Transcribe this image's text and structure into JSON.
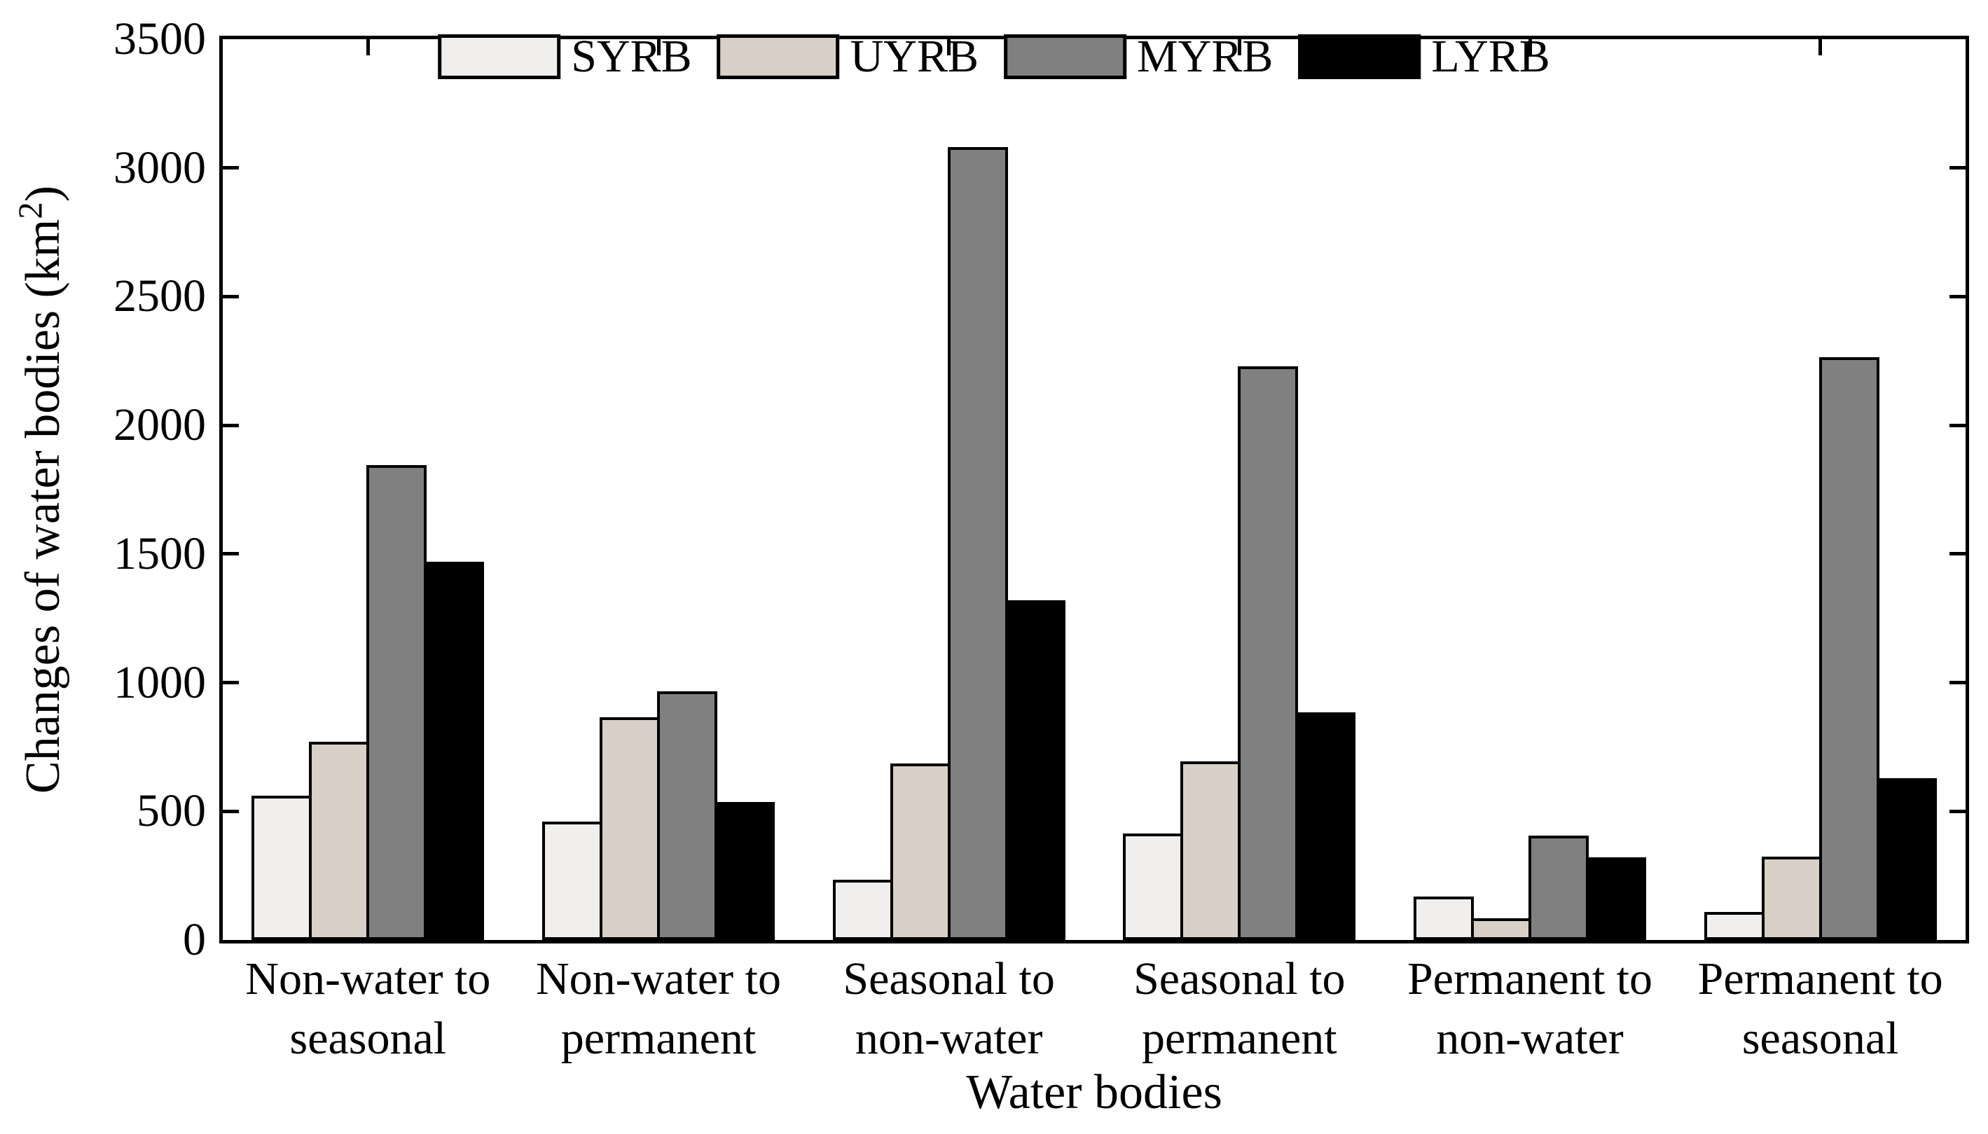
{
  "chart_data": {
    "type": "bar",
    "title": "",
    "xlabel": "Water bodies",
    "ylabel": "Changes of water bodies (km²)",
    "ylabel_parts": {
      "prefix": "Changes of water bodies (km",
      "sup": "2",
      "suffix": ")"
    },
    "categories": [
      [
        "Non-water to",
        "seasonal"
      ],
      [
        "Non-water to",
        "permanent"
      ],
      [
        "Seasonal to",
        "non-water"
      ],
      [
        "Seasonal to",
        "permanent"
      ],
      [
        "Permanent to",
        "non-water"
      ],
      [
        "Permanent to",
        "seasonal"
      ]
    ],
    "series": [
      {
        "name": "SYRB",
        "color": "#f0efed",
        "values": [
          560,
          460,
          235,
          415,
          170,
          110
        ]
      },
      {
        "name": "UYRB",
        "color": "#d8d0c6",
        "values": [
          770,
          865,
          685,
          695,
          85,
          325
        ]
      },
      {
        "name": "MYRB",
        "color": "#808080",
        "values": [
          1845,
          965,
          3080,
          2230,
          405,
          2265
        ]
      },
      {
        "name": "LYRB",
        "color": "#000000",
        "values": [
          1470,
          535,
          1320,
          885,
          320,
          630
        ]
      }
    ],
    "ylim": [
      0,
      3500
    ],
    "ytick_interval": 500,
    "yticks": [
      0,
      500,
      1000,
      1500,
      2000,
      2500,
      3000,
      3500
    ],
    "grid": false,
    "legend_position": "top-inside",
    "bar_edge_color": "#000000",
    "axis_color": "#000000",
    "background": "#ffffff"
  }
}
